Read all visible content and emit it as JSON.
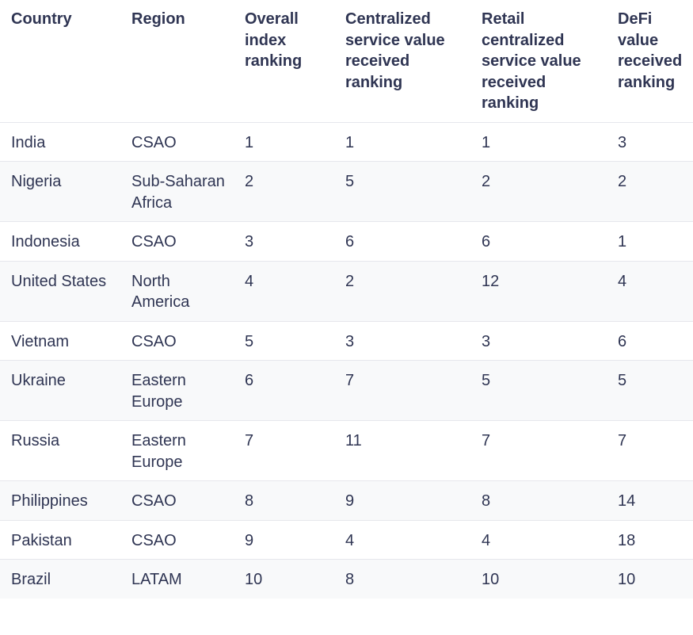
{
  "table": {
    "header": [
      "Country",
      "Region",
      "Overall index ranking",
      "Centralized service value received ranking",
      "Retail centralized service value received ranking",
      "DeFi value received ranking"
    ],
    "rows": [
      [
        "India",
        "CSAO",
        1,
        1,
        1,
        3
      ],
      [
        "Nigeria",
        "Sub-Saharan Africa",
        2,
        5,
        2,
        2
      ],
      [
        "Indonesia",
        "CSAO",
        3,
        6,
        6,
        1
      ],
      [
        "United States",
        "North America",
        4,
        2,
        12,
        4
      ],
      [
        "Vietnam",
        "CSAO",
        5,
        3,
        3,
        6
      ],
      [
        "Ukraine",
        "Eastern Europe",
        6,
        7,
        5,
        5
      ],
      [
        "Russia",
        "Eastern Europe",
        7,
        11,
        7,
        7
      ],
      [
        "Philippines",
        "CSAO",
        8,
        9,
        8,
        14
      ],
      [
        "Pakistan",
        "CSAO",
        9,
        4,
        4,
        18
      ],
      [
        "Brazil",
        "LATAM",
        10,
        8,
        10,
        10
      ]
    ]
  }
}
